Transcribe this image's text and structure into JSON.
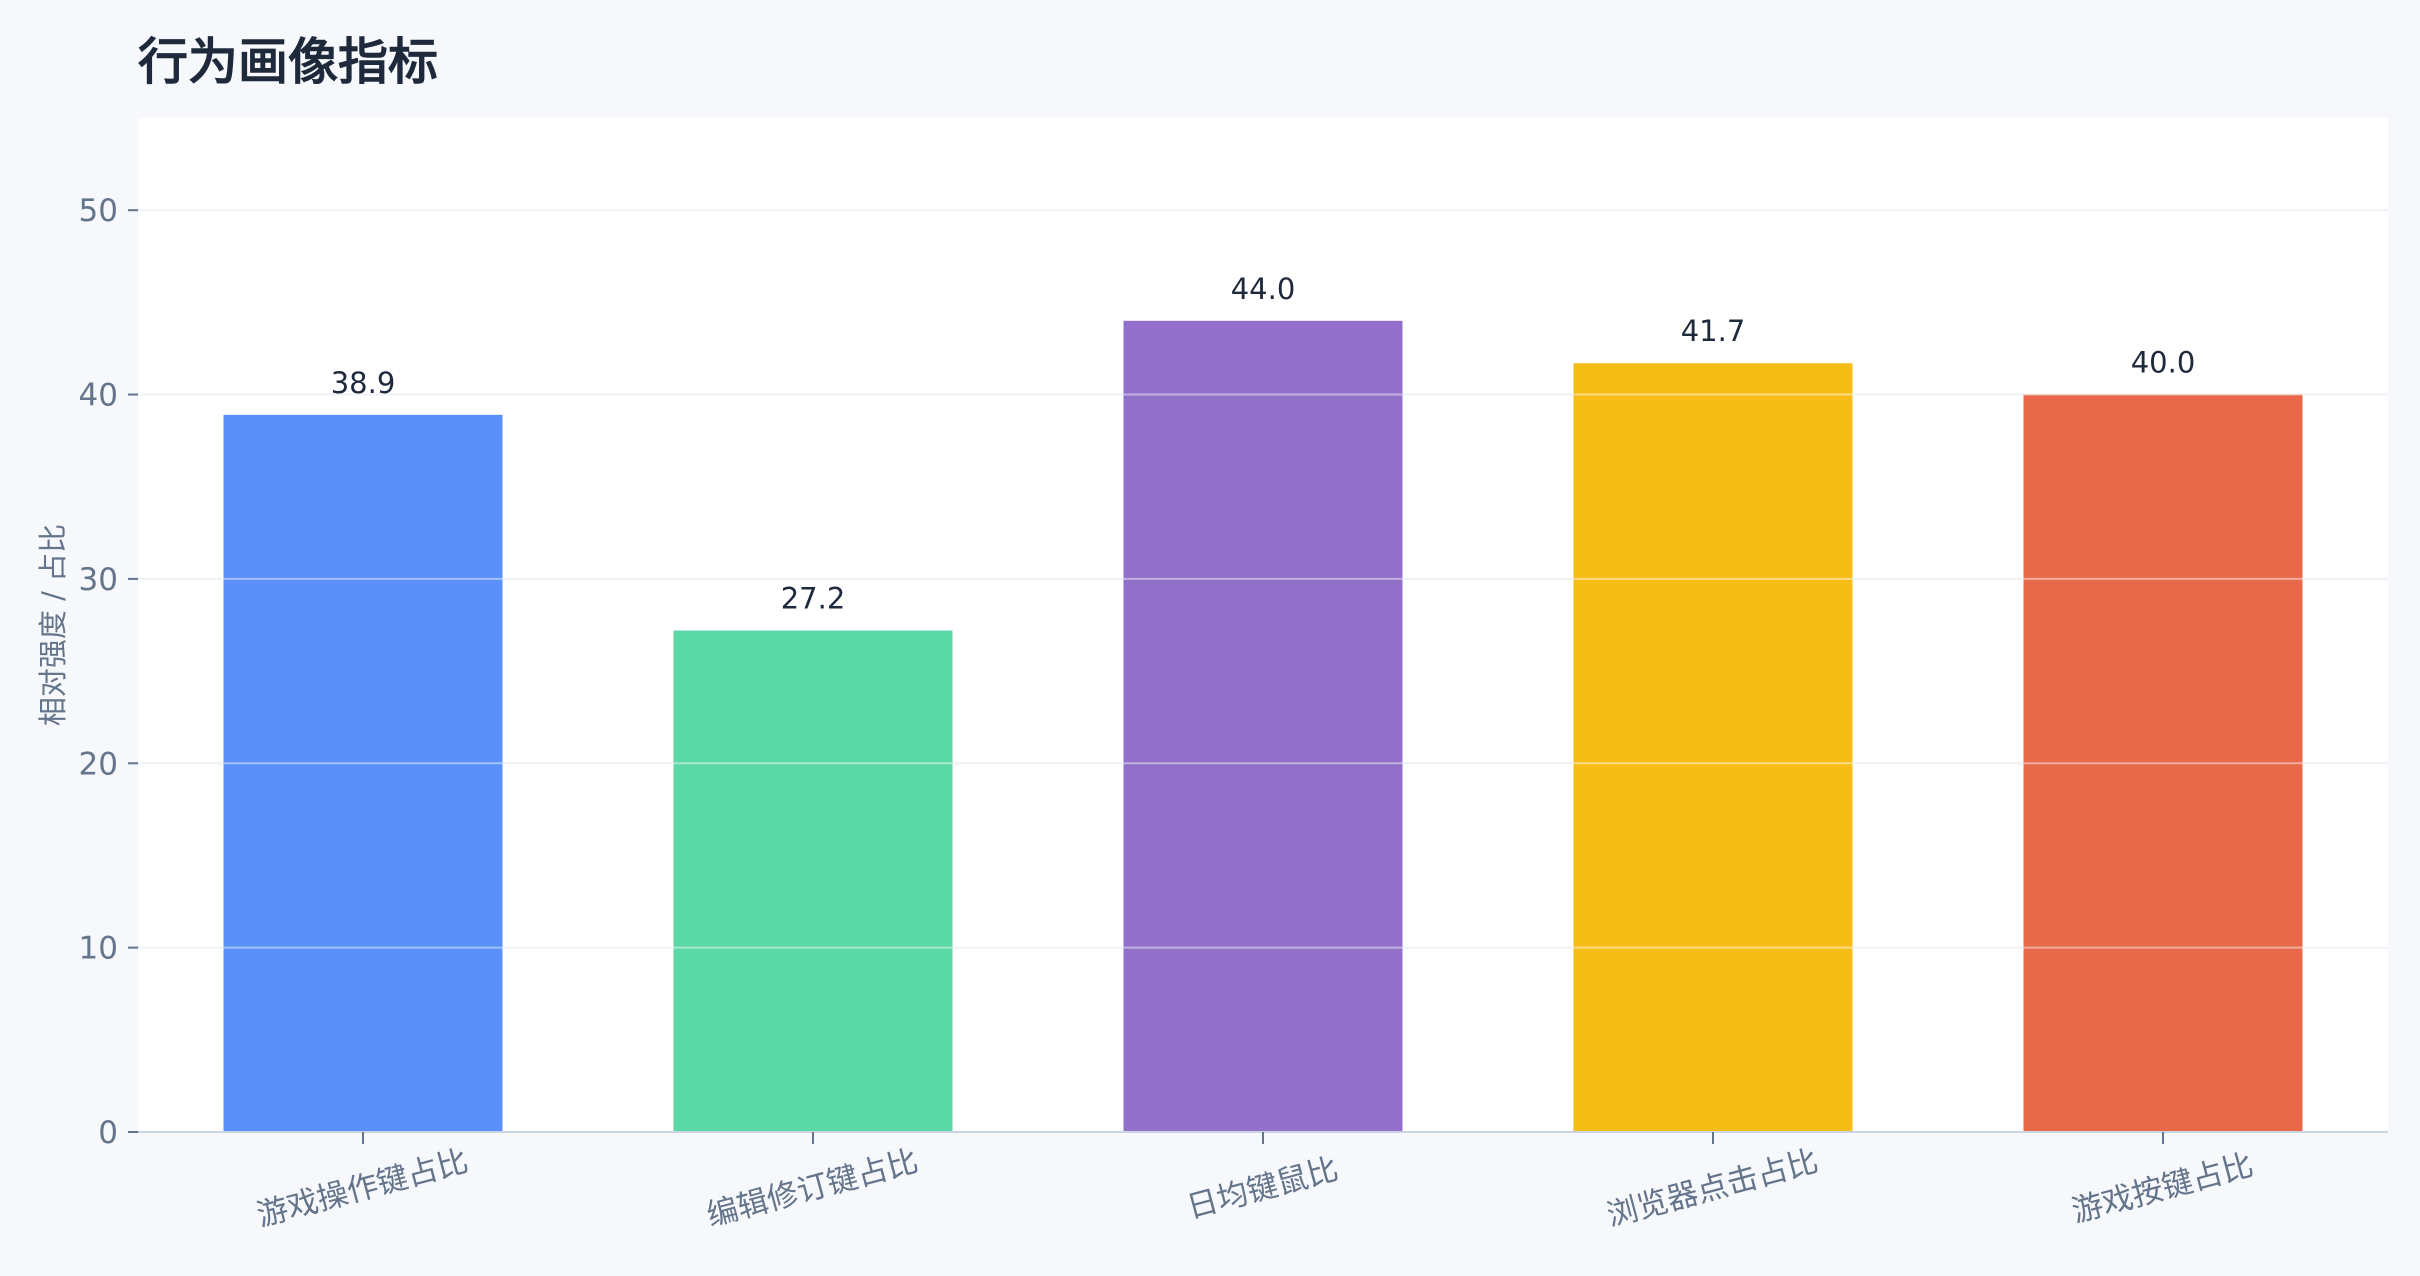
{
  "chart_data": {
    "type": "bar",
    "title": "行为画像指标",
    "xlabel": "",
    "ylabel": "相对强度 / 占比",
    "categories": [
      "游戏操作键占比",
      "编辑修订键占比",
      "日均键鼠比",
      "浏览器点击占比",
      "游戏按键占比"
    ],
    "values": [
      38.9,
      27.2,
      44.0,
      41.7,
      40.0
    ],
    "value_labels": [
      "38.9",
      "27.2",
      "44.0",
      "41.7",
      "40.0"
    ],
    "colors": [
      "#5b8ff9",
      "#5ad8a6",
      "#9270ca",
      "#f6bd16",
      "#e8684a"
    ],
    "ylim": [
      0,
      55
    ],
    "yticks": [
      0,
      10,
      20,
      30,
      40,
      50
    ],
    "grid": true,
    "legend": "none"
  }
}
